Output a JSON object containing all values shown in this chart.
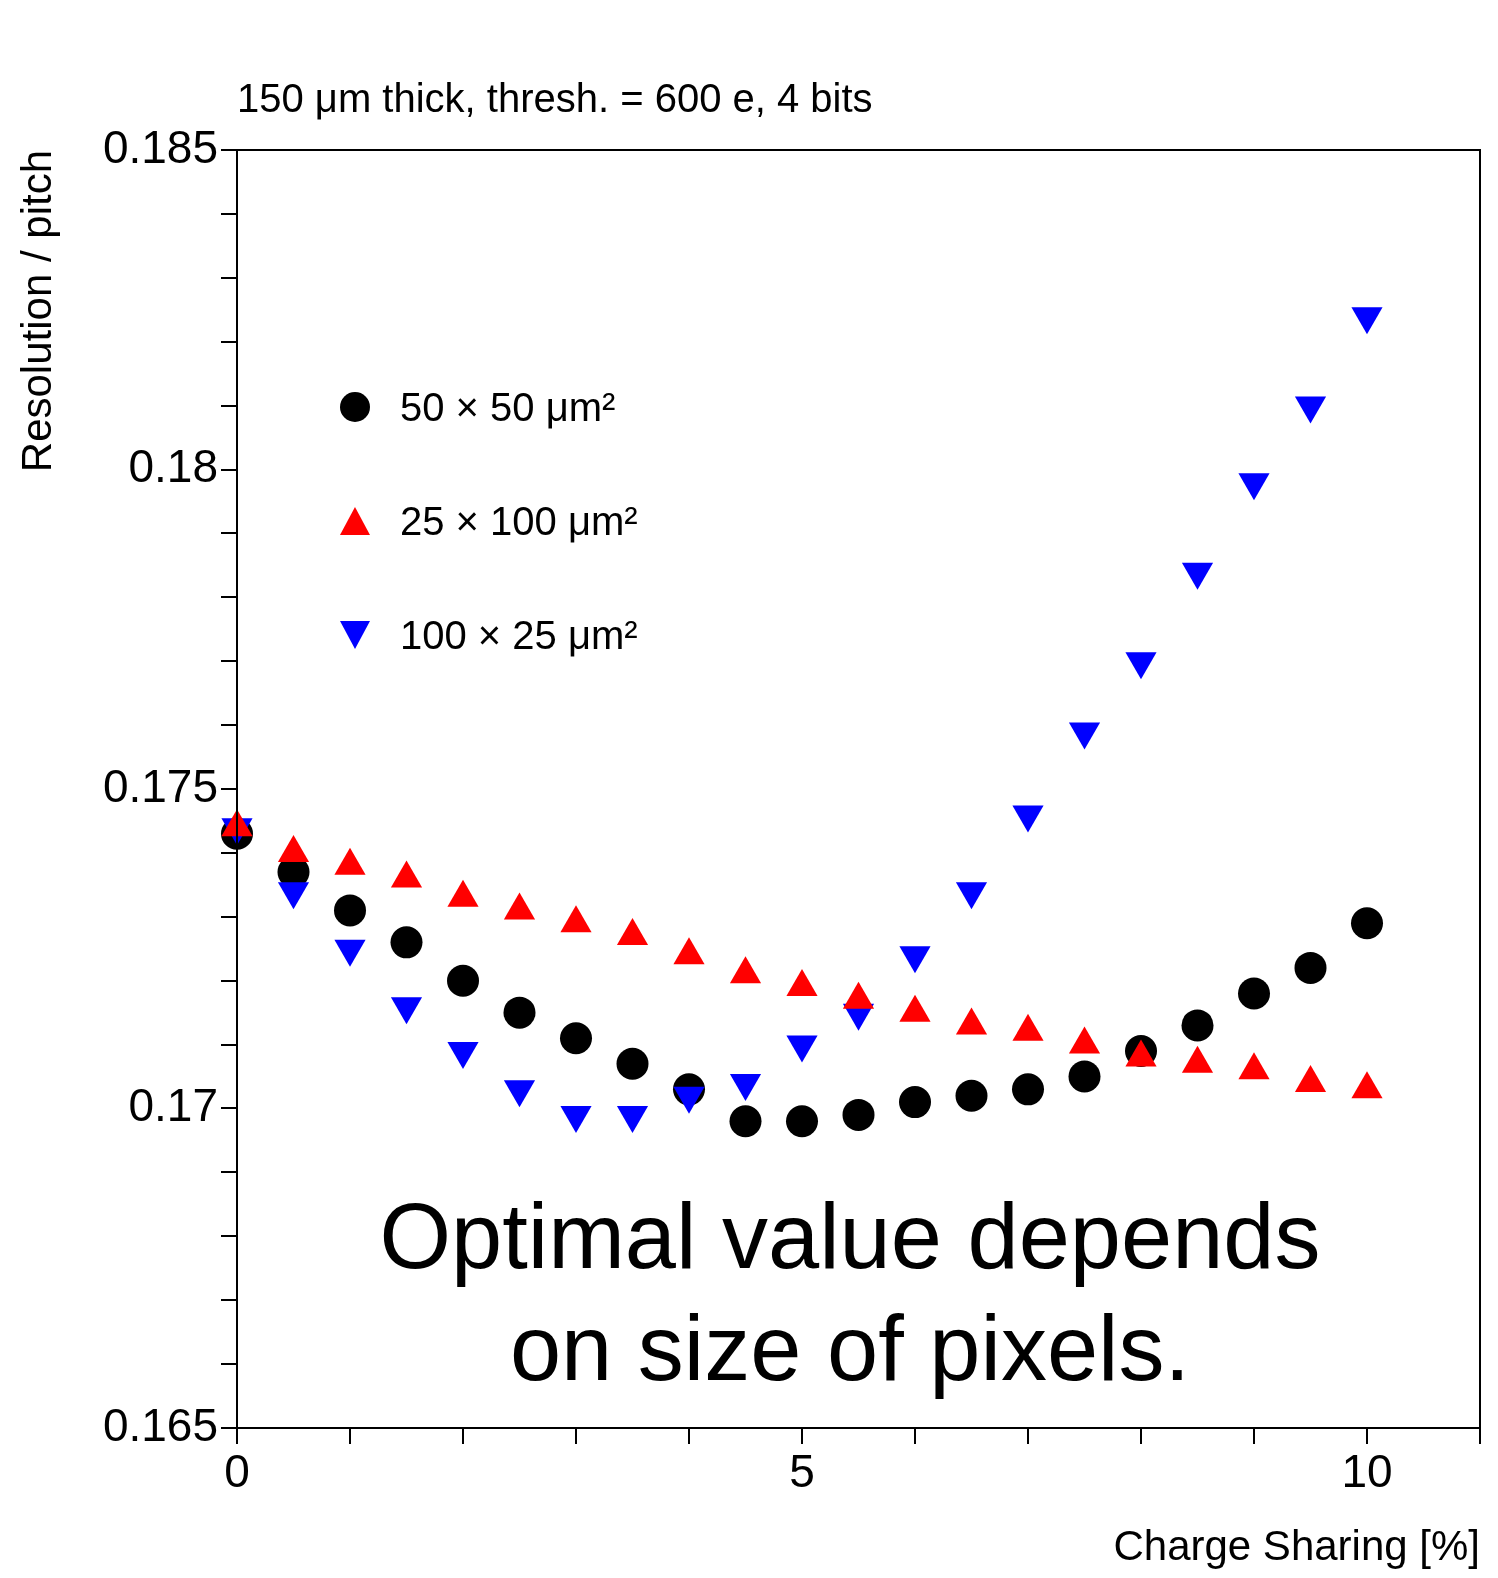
{
  "chart_data": {
    "type": "scatter",
    "subtitle": "150 μm thick, thresh. = 600 e, 4 bits",
    "xlabel": "Charge Sharing [%]",
    "ylabel": "Resolution / pitch",
    "x": [
      0,
      0.5,
      1,
      1.5,
      2,
      2.5,
      3,
      3.5,
      4,
      4.5,
      5,
      5.5,
      6,
      6.5,
      7,
      7.5,
      8,
      8.5,
      9,
      9.5,
      10
    ],
    "series": [
      {
        "name": "50 × 50 μm²",
        "color": "#000000",
        "marker": "circle",
        "values": [
          0.1743,
          0.1737,
          0.1731,
          0.1726,
          0.172,
          0.1715,
          0.1711,
          0.1707,
          0.1703,
          0.1698,
          0.1698,
          0.1699,
          0.1701,
          0.1702,
          0.1703,
          0.1705,
          0.1709,
          0.1713,
          0.1718,
          0.1722,
          0.1729
        ]
      },
      {
        "name": "25 × 100 μm²",
        "color": "#ff0000",
        "marker": "triangle",
        "values": [
          0.1744,
          0.174,
          0.1738,
          0.1736,
          0.1733,
          0.1731,
          0.1729,
          0.1727,
          0.1724,
          0.1721,
          0.1719,
          0.1717,
          0.1715,
          0.1713,
          0.1712,
          0.171,
          0.1708,
          0.1707,
          0.1706,
          0.1704,
          0.1703
        ]
      },
      {
        "name": "100 × 25 μm²",
        "color": "#0000ff",
        "marker": "triangle-down",
        "values": [
          0.1744,
          0.1734,
          0.1725,
          0.1716,
          0.1709,
          0.1703,
          0.1699,
          0.1699,
          0.1702,
          0.1704,
          0.171,
          0.1715,
          0.1724,
          0.1734,
          0.1746,
          0.1759,
          0.177,
          0.1784,
          0.1798,
          0.181,
          0.1824
        ]
      }
    ],
    "xlim": [
      0,
      11
    ],
    "xticks": [
      0,
      {
        "value": 1,
        "label": null
      },
      {
        "value": 2,
        "label": null
      },
      {
        "value": 3,
        "label": null
      },
      {
        "value": 4,
        "label": null
      },
      5,
      {
        "value": 6,
        "label": null
      },
      {
        "value": 7,
        "label": null
      },
      {
        "value": 8,
        "label": null
      },
      {
        "value": 9,
        "label": null
      },
      10,
      {
        "value": 11,
        "label": null
      }
    ],
    "ylim": [
      0.165,
      0.185
    ],
    "yticks": [
      0.165,
      {
        "value": 0.166,
        "label": null
      },
      {
        "value": 0.167,
        "label": null
      },
      {
        "value": 0.168,
        "label": null
      },
      {
        "value": 0.169,
        "label": null
      },
      0.17,
      {
        "value": 0.171,
        "label": null
      },
      {
        "value": 0.172,
        "label": null
      },
      {
        "value": 0.173,
        "label": null
      },
      {
        "value": 0.174,
        "label": null
      },
      0.175,
      {
        "value": 0.176,
        "label": null
      },
      {
        "value": 0.177,
        "label": null
      },
      {
        "value": 0.178,
        "label": null
      },
      {
        "value": 0.179,
        "label": null
      },
      0.18,
      {
        "value": 0.181,
        "label": null
      },
      {
        "value": 0.182,
        "label": null
      },
      {
        "value": 0.183,
        "label": null
      },
      {
        "value": 0.184,
        "label": null
      },
      0.185
    ],
    "grid": false,
    "legend": "top left",
    "annotations": [
      "Optimal value depends on size of pixels."
    ]
  }
}
